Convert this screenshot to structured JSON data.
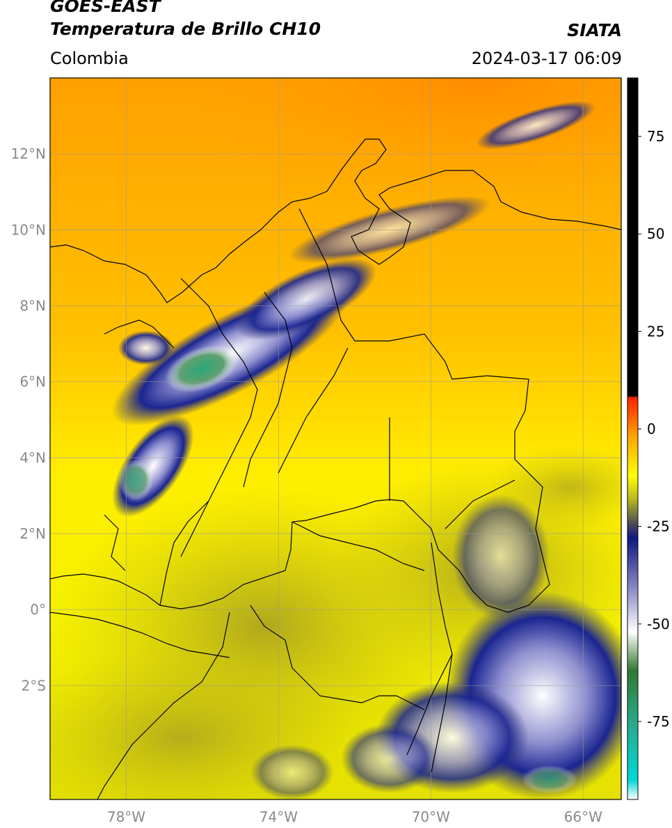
{
  "header": {
    "satellite": "GOES-EAST",
    "product": "Temperatura de Brillo CH10",
    "region": "Colombia",
    "agency": "SIATA",
    "datetime": "2024-03-17 06:09"
  },
  "map": {
    "lon_range": [
      -80,
      -65
    ],
    "lat_range": [
      -5,
      14
    ],
    "grid": true,
    "lat_ticks": [
      {
        "value": 12,
        "label": "12°N"
      },
      {
        "value": 10,
        "label": "10°N"
      },
      {
        "value": 8,
        "label": "8°N"
      },
      {
        "value": 6,
        "label": "6°N"
      },
      {
        "value": 4,
        "label": "4°N"
      },
      {
        "value": 2,
        "label": "2°N"
      },
      {
        "value": 0,
        "label": "0°"
      },
      {
        "value": -2,
        "label": "2°S"
      }
    ],
    "lon_ticks": [
      {
        "value": -78,
        "label": "78°W"
      },
      {
        "value": -74,
        "label": "74°W"
      },
      {
        "value": -70,
        "label": "70°W"
      },
      {
        "value": -66,
        "label": "66°W"
      }
    ]
  },
  "colorbar": {
    "range": [
      -95,
      90
    ],
    "ticks": [
      {
        "value": 75,
        "label": "75"
      },
      {
        "value": 50,
        "label": "50"
      },
      {
        "value": 25,
        "label": "25"
      },
      {
        "value": 0,
        "label": "0"
      },
      {
        "value": -25,
        "label": "-25"
      },
      {
        "value": -50,
        "label": "-50"
      },
      {
        "value": -75,
        "label": "-75"
      }
    ],
    "stops": [
      {
        "value": -95,
        "color": "#ffffff"
      },
      {
        "value": -90,
        "color": "#00d8d8"
      },
      {
        "value": -75,
        "color": "#2aa88a"
      },
      {
        "value": -62,
        "color": "#2f7a2f"
      },
      {
        "value": -52,
        "color": "#ffffff"
      },
      {
        "value": -40,
        "color": "#8080c0"
      },
      {
        "value": -28,
        "color": "#101880"
      },
      {
        "value": -24,
        "color": "#505050"
      },
      {
        "value": -18,
        "color": "#b8b820"
      },
      {
        "value": -12,
        "color": "#ffff00"
      },
      {
        "value": -2,
        "color": "#ffa500"
      },
      {
        "value": 8,
        "color": "#ff2000"
      },
      {
        "value": 8.5,
        "color": "#000000"
      },
      {
        "value": 90,
        "color": "#000000"
      }
    ]
  }
}
